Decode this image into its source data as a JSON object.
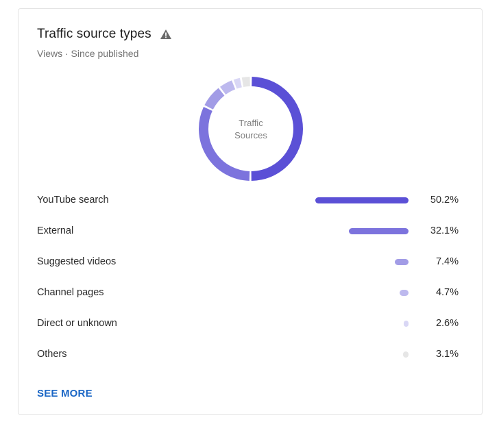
{
  "header": {
    "title": "Traffic source types",
    "subtitle": "Views · Since published"
  },
  "donut": {
    "center_line1": "Traffic",
    "center_line2": "Sources"
  },
  "footer": {
    "see_more_label": "SEE MORE"
  },
  "colors": {
    "accent": "#5b50d6",
    "warning_icon": "#6b6b6b",
    "link": "#1a66c5"
  },
  "chart_data": {
    "type": "pie",
    "title": "Traffic source types",
    "subtitle": "Views · Since published",
    "categories": [
      "YouTube search",
      "External",
      "Suggested videos",
      "Channel pages",
      "Direct or unknown",
      "Others"
    ],
    "values": [
      50.2,
      32.1,
      7.4,
      4.7,
      2.6,
      3.1
    ],
    "value_labels": [
      "50.2%",
      "32.1%",
      "7.4%",
      "4.7%",
      "2.6%",
      "3.1%"
    ],
    "colors": [
      "#5b50d6",
      "#7c73dd",
      "#a29ce6",
      "#bdb9ee",
      "#d9d7f5",
      "#e6e6e6"
    ],
    "unit": "%"
  }
}
